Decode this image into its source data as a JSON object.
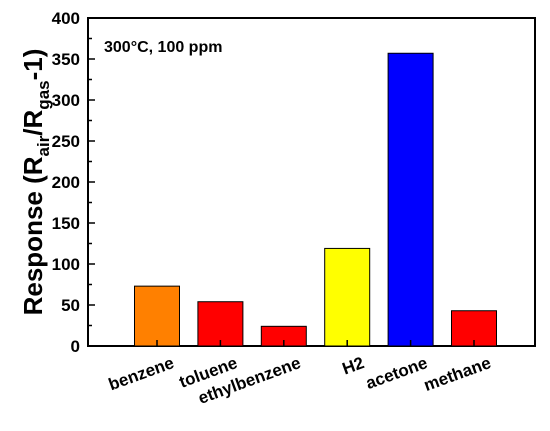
{
  "chart_data": {
    "type": "bar",
    "title": "",
    "annotation": "300°C, 100 ppm",
    "ylabel": {
      "prefix": "Response (R",
      "sub1": "air",
      "mid": "/R",
      "sub2": "gas",
      "suffix": "-1)"
    },
    "xlabel": "",
    "ylim": [
      0,
      400
    ],
    "yticks": [
      0,
      50,
      100,
      150,
      200,
      250,
      300,
      350,
      400
    ],
    "categories": [
      "benzene",
      "toluene",
      "ethylbenzene",
      "H2",
      "acetone",
      "methane"
    ],
    "values": [
      73,
      54,
      24,
      119,
      357,
      43
    ],
    "colors": [
      "#FF8000",
      "#FF0000",
      "#FF0000",
      "#FFFF00",
      "#0000FF",
      "#FF0000"
    ],
    "grid": false,
    "legend": "none"
  }
}
